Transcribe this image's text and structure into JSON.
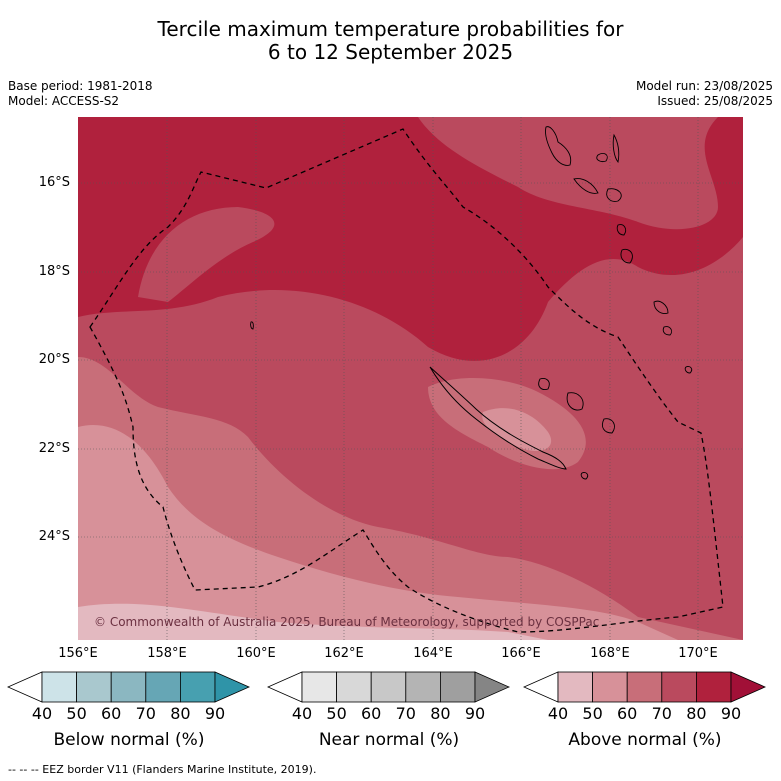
{
  "title_line1": "Tercile maximum temperature probabilities for",
  "title_line2": "6 to 12 September 2025",
  "base_period": "Base period: 1981-2018",
  "model": "Model: ACCESS-S2",
  "model_run": "Model run: 23/08/2025",
  "issued": "Issued: 25/08/2025",
  "lat_labels": [
    "16°S",
    "18°S",
    "20°S",
    "22°S",
    "24°S"
  ],
  "lon_labels": [
    "156°E",
    "158°E",
    "160°E",
    "162°E",
    "164°E",
    "166°E",
    "168°E",
    "170°E"
  ],
  "copyright": "© Commonwealth of Australia 2025, Bureau of Meteorology, supported by COSPPac",
  "colorbars": [
    {
      "title": "Below normal (%)",
      "ticks": [
        "40",
        "50",
        "60",
        "70",
        "80",
        "90"
      ],
      "colors": [
        "#ffffff",
        "#cde3e8",
        "#a9c8ce",
        "#8bb7c1",
        "#66a6b5",
        "#47a0b0",
        "#2f94a8"
      ]
    },
    {
      "title": "Near normal (%)",
      "ticks": [
        "40",
        "50",
        "60",
        "70",
        "80",
        "90"
      ],
      "colors": [
        "#ffffff",
        "#e7e7e7",
        "#d8d8d8",
        "#c8c8c8",
        "#b4b4b4",
        "#9f9f9f",
        "#858585"
      ]
    },
    {
      "title": "Above normal (%)",
      "ticks": [
        "40",
        "50",
        "60",
        "70",
        "80",
        "90"
      ],
      "colors": [
        "#ffffff",
        "#e3b9c0",
        "#d79199",
        "#c86e79",
        "#ba4a5e",
        "#b0213d",
        "#a11037"
      ]
    }
  ],
  "footer": "-- -- -- EEZ border V11 (Flanders Marine Institute, 2019)."
}
